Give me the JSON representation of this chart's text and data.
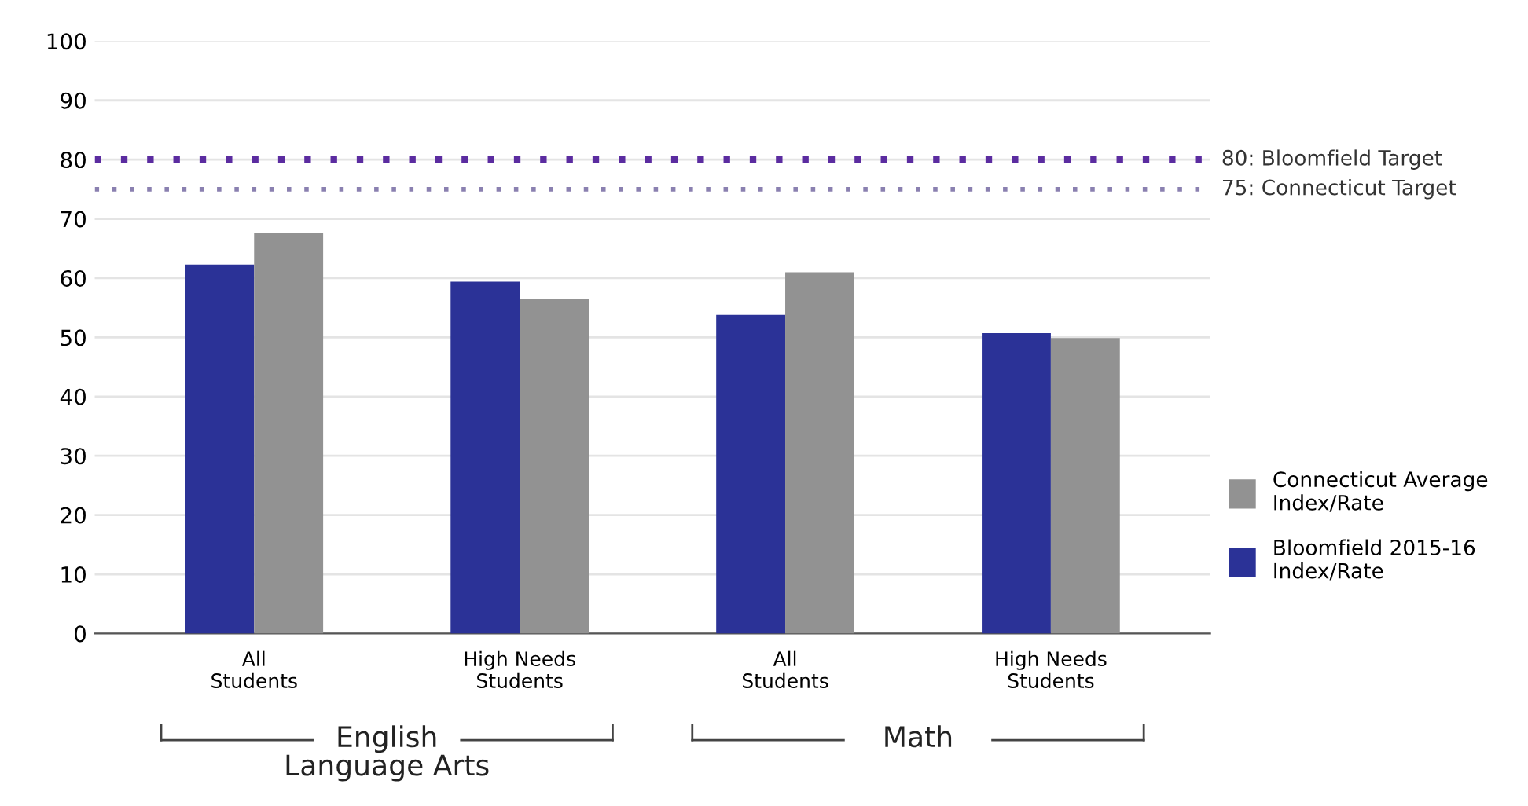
{
  "chart_data": {
    "type": "bar",
    "categories": [
      "All\nStudents",
      "High Needs\nStudents",
      "All\nStudents",
      "High Needs\nStudents"
    ],
    "series": [
      {
        "name": "Bloomfield 2015-16\nIndex/Rate",
        "color": "#2b3297",
        "values": [
          62.3,
          59.4,
          53.8,
          50.7
        ]
      },
      {
        "name": "Connecticut Average\nIndex/Rate",
        "color": "#929292",
        "values": [
          67.6,
          56.5,
          61.0,
          49.9
        ]
      }
    ],
    "ylim": [
      0,
      100
    ],
    "yticks": [
      0,
      10,
      20,
      30,
      40,
      50,
      60,
      70,
      80,
      90,
      100
    ],
    "grid": "y",
    "legend": "right",
    "ref_lines": [
      {
        "axis": "y",
        "value": 80,
        "label": "80: Bloomfield Target",
        "color": "#5b2ca0",
        "line_style": "dotted"
      },
      {
        "axis": "y",
        "value": 75,
        "label": "75: Connecticut Target",
        "color": "#8a80b0",
        "line_style": "dotted"
      }
    ],
    "annotations": [
      "English\nLanguage Arts",
      "Math"
    ]
  }
}
